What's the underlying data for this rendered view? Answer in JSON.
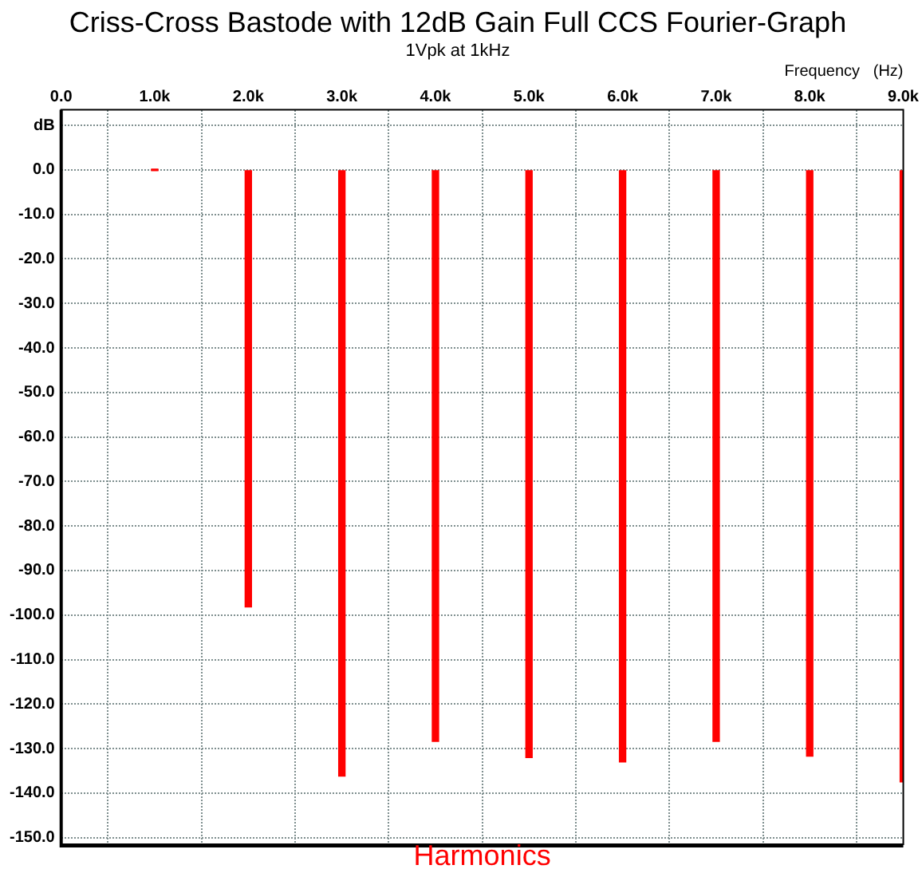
{
  "chart_data": {
    "type": "bar",
    "title": "Criss-Cross Bastode with 12dB Gain Full CCS Fourier-Graph",
    "subtitle": "1Vpk at 1kHz",
    "xlabel": "Frequency   (Hz)",
    "x": [
      1000,
      2000,
      3000,
      4000,
      5000,
      6000,
      7000,
      8000,
      9000
    ],
    "values": [
      0,
      -98.2,
      -136.2,
      -128.4,
      -132,
      -133,
      -128.4,
      -131.7,
      -137.5
    ],
    "color": "#ff0000",
    "xlim": [
      0,
      9000
    ],
    "xticks": [
      {
        "value": 0,
        "label": "0.0"
      },
      {
        "value": 1000,
        "label": "1.0k"
      },
      {
        "value": 2000,
        "label": "2.0k"
      },
      {
        "value": 3000,
        "label": "3.0k"
      },
      {
        "value": 4000,
        "label": "4.0k"
      },
      {
        "value": 5000,
        "label": "5.0k"
      },
      {
        "value": 6000,
        "label": "6.0k"
      },
      {
        "value": 7000,
        "label": "7.0k"
      },
      {
        "value": 8000,
        "label": "8.0k"
      },
      {
        "value": 9000,
        "label": "9.0k"
      }
    ],
    "ylim": [
      -151.5,
      13.5
    ],
    "yticks": [
      {
        "value": 10,
        "label": "dB"
      },
      {
        "value": 0,
        "label": "0.0"
      },
      {
        "value": -10,
        "label": "-10.0"
      },
      {
        "value": -20,
        "label": "-20.0"
      },
      {
        "value": -30,
        "label": "-30.0"
      },
      {
        "value": -40,
        "label": "-40.0"
      },
      {
        "value": -50,
        "label": "-50.0"
      },
      {
        "value": -60,
        "label": "-60.0"
      },
      {
        "value": -70,
        "label": "-70.0"
      },
      {
        "value": -80,
        "label": "-80.0"
      },
      {
        "value": -90,
        "label": "-90.0"
      },
      {
        "value": -100,
        "label": "-100.0"
      },
      {
        "value": -110,
        "label": "-110.0"
      },
      {
        "value": -120,
        "label": "-120.0"
      },
      {
        "value": -130,
        "label": "-130.0"
      },
      {
        "value": -140,
        "label": "-140.0"
      },
      {
        "value": -150,
        "label": "-150.0"
      }
    ],
    "grid": true,
    "legend": false,
    "annotations": [
      "Harmonics"
    ]
  }
}
